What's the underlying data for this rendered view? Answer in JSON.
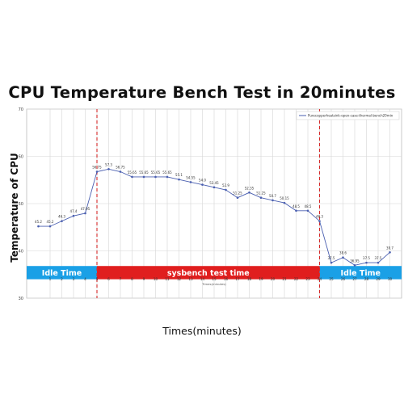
{
  "title": "CPU Temperature Bench Test in 20minutes",
  "ylabel": "Temperature of CPU",
  "xlabel": "Times(minutes)",
  "chart_data": {
    "type": "line",
    "xlabel_small": "Times(minutes)",
    "legend": "Purecopperheatsink-open-case-thermal-bench20min",
    "legend_position": "top-right",
    "grid": true,
    "xlim": [
      -1,
      31
    ],
    "ylim": [
      30,
      70
    ],
    "yticks": [
      30,
      40,
      50,
      60,
      70
    ],
    "xticks": [
      1,
      2,
      3,
      4,
      5,
      6,
      7,
      8,
      9,
      10,
      11,
      12,
      13,
      14,
      15,
      16,
      17,
      18,
      19,
      20,
      21,
      22,
      23,
      24,
      25,
      26,
      27,
      28,
      29,
      30
    ],
    "series": [
      {
        "name": "Purecopperheatsink-open-case-thermal-bench20min",
        "color": "#4a5fb0",
        "x": [
          0,
          1,
          2,
          3,
          4,
          5,
          6,
          7,
          8,
          9,
          10,
          11,
          12,
          13,
          14,
          15,
          16,
          17,
          18,
          19,
          20,
          21,
          22,
          23,
          24,
          25,
          26,
          27,
          28,
          29,
          30
        ],
        "y": [
          45.2,
          45.2,
          46.3,
          47.4,
          47.95,
          56.75,
          57.3,
          56.75,
          55.65,
          55.65,
          55.65,
          55.65,
          55.1,
          54.55,
          54.0,
          53.45,
          52.9,
          51.25,
          52.35,
          51.25,
          50.7,
          50.15,
          48.5,
          48.5,
          46.3,
          37.5,
          38.6,
          36.95,
          37.5,
          37.5,
          39.7
        ],
        "labels": [
          "45.2",
          "45.2",
          "46.3",
          "47.4",
          "47.95",
          "56.75",
          "57.3",
          "56.75",
          "55.65",
          "55.65",
          "55.65",
          "55.65",
          "55.1",
          "54.55",
          "54.0",
          "53.45",
          "52.9",
          "51.25",
          "52.35",
          "51.25",
          "50.7",
          "50.15",
          "48.5",
          "48.5",
          "46.3",
          "37.5",
          "38.6",
          "36.95",
          "37.5",
          "37.5",
          "39.7"
        ]
      }
    ],
    "vlines": [
      {
        "x": 5,
        "color": "#d62c2c",
        "style": "dashed"
      },
      {
        "x": 24,
        "color": "#d62c2c",
        "style": "dashed"
      }
    ],
    "bands": [
      {
        "label": "Idle Time",
        "x_start": -1,
        "x_end": 5,
        "color": "#1aa0e6"
      },
      {
        "label": "sysbench test time",
        "x_start": 5,
        "x_end": 24,
        "color": "#e01e1e"
      },
      {
        "label": "Idle Time",
        "x_start": 24,
        "x_end": 31,
        "color": "#1aa0e6"
      }
    ],
    "band_y": [
      34,
      36.8
    ]
  }
}
